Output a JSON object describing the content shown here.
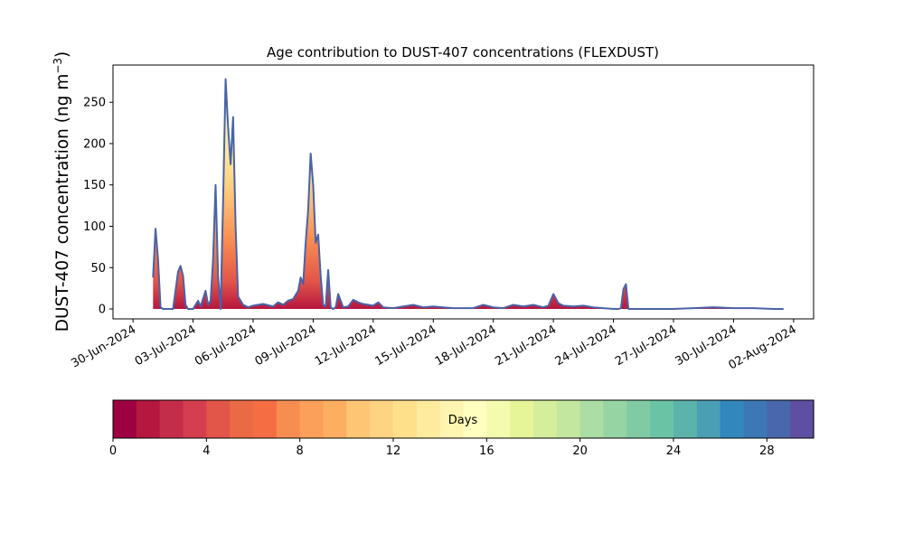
{
  "chart_data": {
    "type": "area",
    "title": "Age contribution to DUST-407 concentrations (FLEXDUST)",
    "ylabel": "DUST-407 concentration (ng m",
    "ylabel_unit_sup": "−3",
    "ylabel_close": ")",
    "ylim": [
      -12,
      295
    ],
    "yticks": [
      0,
      50,
      100,
      150,
      200,
      250
    ],
    "x_start": "29-Jun-2024",
    "x_end": "03-Aug-2024",
    "xticks": [
      "30-Jun-2024",
      "03-Jul-2024",
      "06-Jul-2024",
      "09-Jul-2024",
      "12-Jul-2024",
      "15-Jul-2024",
      "18-Jul-2024",
      "21-Jul-2024",
      "24-Jul-2024",
      "27-Jul-2024",
      "30-Jul-2024",
      "02-Aug-2024"
    ],
    "total_series_color": "#4a62a8",
    "stack_description": "stacked fill by age of contribution in days",
    "series": [
      {
        "kind": "total",
        "x": [
          "2024-07-01T00:00",
          "2024-07-01T03:00",
          "2024-07-01T06:00",
          "2024-07-01T09:00",
          "2024-07-01T12:00",
          "2024-07-01T18:00",
          "2024-07-02T00:00",
          "2024-07-02T06:00",
          "2024-07-02T09:00",
          "2024-07-02T12:00",
          "2024-07-02T15:00",
          "2024-07-02T18:00",
          "2024-07-03T00:00",
          "2024-07-03T06:00",
          "2024-07-03T09:00",
          "2024-07-03T15:00",
          "2024-07-03T18:00",
          "2024-07-03T21:00",
          "2024-07-04T00:00",
          "2024-07-04T03:00",
          "2024-07-04T06:00",
          "2024-07-04T09:00",
          "2024-07-04T12:00",
          "2024-07-04T15:00",
          "2024-07-04T18:00",
          "2024-07-04T21:00",
          "2024-07-05T00:00",
          "2024-07-05T03:00",
          "2024-07-05T06:00",
          "2024-07-05T12:00",
          "2024-07-05T18:00",
          "2024-07-06T00:00",
          "2024-07-06T12:00",
          "2024-07-07T00:00",
          "2024-07-07T06:00",
          "2024-07-07T12:00",
          "2024-07-07T18:00",
          "2024-07-08T00:00",
          "2024-07-08T06:00",
          "2024-07-08T09:00",
          "2024-07-08T12:00",
          "2024-07-08T15:00",
          "2024-07-08T18:00",
          "2024-07-08T21:00",
          "2024-07-09T00:00",
          "2024-07-09T03:00",
          "2024-07-09T06:00",
          "2024-07-09T09:00",
          "2024-07-09T12:00",
          "2024-07-09T15:00",
          "2024-07-09T18:00",
          "2024-07-09T21:00",
          "2024-07-10T00:00",
          "2024-07-10T03:00",
          "2024-07-10T06:00",
          "2024-07-10T12:00",
          "2024-07-10T18:00",
          "2024-07-11T00:00",
          "2024-07-11T06:00",
          "2024-07-11T12:00",
          "2024-07-12T00:00",
          "2024-07-12T06:00",
          "2024-07-12T12:00",
          "2024-07-13T00:00",
          "2024-07-13T12:00",
          "2024-07-14T00:00",
          "2024-07-14T12:00",
          "2024-07-15T00:00",
          "2024-07-15T12:00",
          "2024-07-16T00:00",
          "2024-07-17T00:00",
          "2024-07-17T12:00",
          "2024-07-18T00:00",
          "2024-07-18T12:00",
          "2024-07-19T00:00",
          "2024-07-19T12:00",
          "2024-07-20T00:00",
          "2024-07-20T12:00",
          "2024-07-20T18:00",
          "2024-07-21T00:00",
          "2024-07-21T06:00",
          "2024-07-21T12:00",
          "2024-07-22T00:00",
          "2024-07-22T12:00",
          "2024-07-23T00:00",
          "2024-07-23T12:00",
          "2024-07-24T00:00",
          "2024-07-24T06:00",
          "2024-07-24T09:00",
          "2024-07-24T12:00",
          "2024-07-24T15:00",
          "2024-07-24T18:00",
          "2024-07-25T00:00",
          "2024-07-26T00:00",
          "2024-07-27T00:00",
          "2024-07-28T00:00",
          "2024-07-29T00:00",
          "2024-07-30T00:00",
          "2024-07-31T00:00",
          "2024-08-01T00:00",
          "2024-08-01T12:00"
        ],
        "y": [
          38,
          97,
          60,
          2,
          0,
          0,
          0,
          45,
          52,
          40,
          5,
          0,
          0,
          10,
          3,
          22,
          5,
          10,
          60,
          150,
          40,
          0,
          130,
          278,
          220,
          175,
          232,
          100,
          15,
          5,
          2,
          4,
          6,
          3,
          8,
          5,
          10,
          12,
          22,
          38,
          30,
          80,
          120,
          188,
          150,
          80,
          90,
          40,
          5,
          3,
          47,
          2,
          0,
          2,
          18,
          2,
          3,
          11,
          8,
          6,
          4,
          8,
          2,
          1,
          3,
          5,
          2,
          3,
          2,
          1,
          1,
          5,
          2,
          1,
          5,
          3,
          5,
          2,
          4,
          18,
          7,
          4,
          3,
          4,
          2,
          1,
          0,
          0,
          1,
          24,
          30,
          0,
          0,
          0,
          0,
          1,
          2,
          1,
          1,
          0,
          0
        ]
      }
    ],
    "colorbar": {
      "label": "Days",
      "min": 0,
      "max": 30,
      "ticks": [
        0,
        4,
        8,
        12,
        16,
        20,
        24,
        28
      ],
      "colors": [
        "#9e0142",
        "#b5173f",
        "#c42d4a",
        "#d53e4f",
        "#e25549",
        "#ea6a46",
        "#f46d43",
        "#f88d52",
        "#fba05b",
        "#fdae61",
        "#fec574",
        "#fed483",
        "#fee08b",
        "#feeb9d",
        "#fff5b1",
        "#ffffbf",
        "#f4faae",
        "#e6f598",
        "#d5ee9b",
        "#c4e79f",
        "#abdda4",
        "#97d4a3",
        "#80cba4",
        "#6bc3a5",
        "#5cb3ab",
        "#4b9fb4",
        "#3288bd",
        "#3c78b6",
        "#4967ac",
        "#5e4fa2"
      ]
    }
  }
}
